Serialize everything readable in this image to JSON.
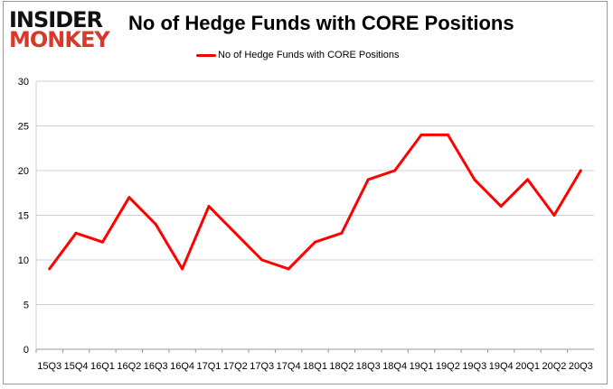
{
  "logo": {
    "line1": "INSIDER",
    "line2": "MONKEY"
  },
  "chart_data": {
    "type": "line",
    "title": "No of Hedge Funds with CORE Positions",
    "xlabel": "",
    "ylabel": "",
    "ylim": [
      0,
      30
    ],
    "yticks": [
      0,
      5,
      10,
      15,
      20,
      25,
      30
    ],
    "grid": true,
    "legend_position": "top-center",
    "categories": [
      "15Q3",
      "15Q4",
      "16Q1",
      "16Q2",
      "16Q3",
      "16Q4",
      "17Q1",
      "17Q2",
      "17Q3",
      "17Q4",
      "18Q1",
      "18Q2",
      "18Q3",
      "18Q4",
      "19Q1",
      "19Q2",
      "19Q3",
      "19Q4",
      "20Q1",
      "20Q2",
      "20Q3"
    ],
    "series": [
      {
        "name": "No of Hedge Funds with CORE Positions",
        "color": "#ff0000",
        "values": [
          9,
          13,
          12,
          17,
          14,
          9,
          16,
          13,
          10,
          9,
          12,
          13,
          19,
          20,
          24,
          24,
          19,
          16,
          19,
          15,
          20
        ]
      }
    ]
  }
}
